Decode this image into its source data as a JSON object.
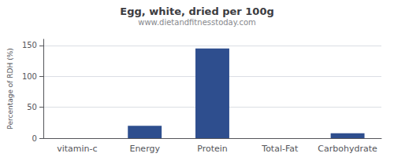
{
  "chart_data": {
    "type": "bar",
    "title": "Egg, white, dried per 100g",
    "subtitle": "www.dietandfitnesstoday.com",
    "categories": [
      "vitamin-c",
      "Energy",
      "Protein",
      "Total-Fat",
      "Carbohydrate"
    ],
    "values": [
      0,
      20,
      145,
      0,
      8
    ],
    "color": "#2e4e8e",
    "ylabel": "Percentage of RDH (%)",
    "ylim": [
      0,
      160
    ],
    "yticks": [
      0,
      50,
      100,
      150
    ],
    "grid": true
  }
}
